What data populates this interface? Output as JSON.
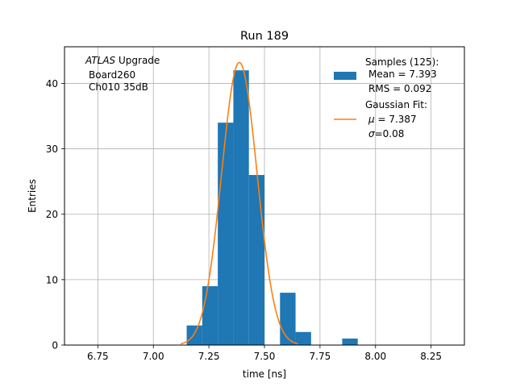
{
  "chart_data": {
    "type": "bar",
    "title": "Run 189",
    "xlabel": "time [ns]",
    "ylabel": "Entries",
    "xlim": [
      6.6,
      8.4
    ],
    "ylim": [
      0,
      45.6
    ],
    "xticks": [
      6.75,
      7.0,
      7.25,
      7.5,
      7.75,
      8.0,
      8.25
    ],
    "xtick_labels": [
      "6.75",
      "7.00",
      "7.25",
      "7.50",
      "7.75",
      "8.00",
      "8.25"
    ],
    "yticks": [
      0,
      10,
      20,
      30,
      40
    ],
    "ytick_labels": [
      "0",
      "10",
      "20",
      "30",
      "40"
    ],
    "grid": true,
    "bin_width": 0.07,
    "bins": [
      {
        "x": 7.15,
        "count": 3
      },
      {
        "x": 7.22,
        "count": 9
      },
      {
        "x": 7.29,
        "count": 34
      },
      {
        "x": 7.36,
        "count": 42
      },
      {
        "x": 7.43,
        "count": 26
      },
      {
        "x": 7.5,
        "count": 0
      },
      {
        "x": 7.57,
        "count": 8
      },
      {
        "x": 7.64,
        "count": 2
      },
      {
        "x": 7.71,
        "count": 0
      },
      {
        "x": 7.78,
        "count": 0
      },
      {
        "x": 7.85,
        "count": 1
      }
    ],
    "fit": {
      "type": "gaussian",
      "mu": 7.387,
      "sigma": 0.08,
      "amplitude": 43.2
    },
    "bar_color": "#1f77b4",
    "fit_color": "#ff7f0e",
    "annotation": {
      "line1_italic": "ATLAS",
      "line1_rest": " Upgrade",
      "line2": "Board260",
      "line3": "Ch010 35dB"
    },
    "legend": {
      "placement": "top-right",
      "hist_title": "Samples (125):",
      "hist_mean": "Mean = 7.393",
      "hist_rms": "RMS = 0.092",
      "fit_title": "Gaussian Fit:",
      "fit_mu_symbol": "μ",
      "fit_mu_value": " = 7.387",
      "fit_sigma_symbol": "σ",
      "fit_sigma_value": "=0.08"
    }
  }
}
